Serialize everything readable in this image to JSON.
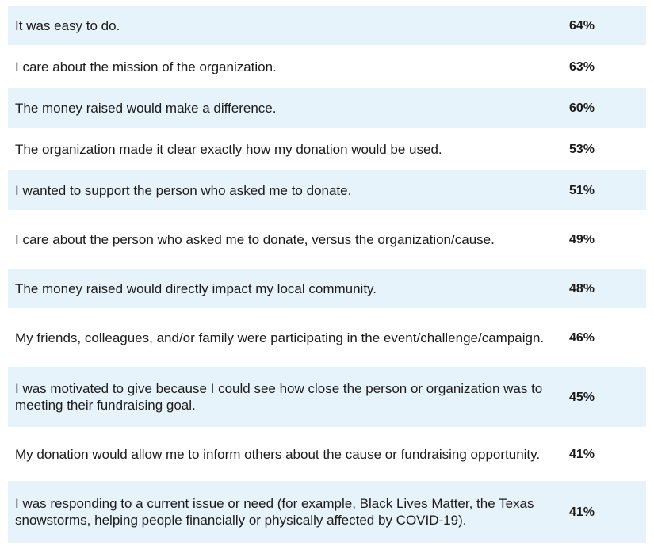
{
  "chart_data": {
    "type": "table",
    "columns": [
      "",
      ""
    ],
    "rows": [
      {
        "reason": "It was easy to do.",
        "percent_label": "64%",
        "value": 64
      },
      {
        "reason": "I care about the mission of the organization.",
        "percent_label": "63%",
        "value": 63
      },
      {
        "reason": "The money raised would make a difference.",
        "percent_label": "60%",
        "value": 60
      },
      {
        "reason": "The organization made it clear exactly how my donation would be used.",
        "percent_label": "53%",
        "value": 53
      },
      {
        "reason": "I wanted to support the person who asked me to donate.",
        "percent_label": "51%",
        "value": 51
      },
      {
        "reason": "I care about the person who asked me to donate, versus the organization/cause.",
        "percent_label": "49%",
        "value": 49
      },
      {
        "reason": "The money raised would directly impact my local community.",
        "percent_label": "48%",
        "value": 48
      },
      {
        "reason": "My friends, colleagues, and/or family were participating in the event/challenge/campaign.",
        "percent_label": "46%",
        "value": 46
      },
      {
        "reason": "I was motivated to give because I could see how close the person or organization was to meeting their fundraising goal.",
        "percent_label": "45%",
        "value": 45
      },
      {
        "reason": "My donation would allow me to inform others about the cause or fundraising opportunity.",
        "percent_label": "41%",
        "value": 41
      },
      {
        "reason": "I was responding to a current issue or need (for example, Black Lives Matter, the Texas snowstorms, helping people financially or physically affected by COVID-19).",
        "percent_label": "41%",
        "value": 41
      }
    ],
    "colors": {
      "shaded_row": "#e7f3fa",
      "plain_row": "#ffffff",
      "text": "#1b1b1b"
    }
  }
}
